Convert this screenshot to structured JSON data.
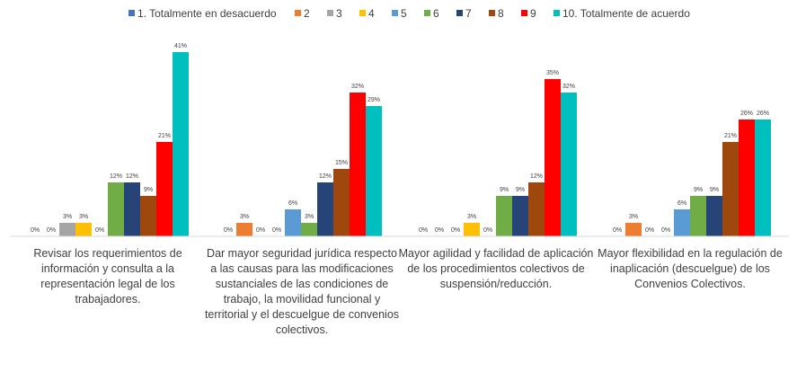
{
  "chart_data": {
    "type": "bar",
    "title": "",
    "xlabel": "",
    "ylabel": "",
    "ylim": [
      0,
      42
    ],
    "grid": false,
    "legend_position": "top",
    "categories": [
      "Revisar los requerimientos de información y consulta a la representación legal de los trabajadores.",
      "Dar mayor seguridad jurídica respecto a las causas para  las modificaciones sustanciales de las condiciones de trabajo, la movilidad funcional y territorial y el descuelgue de convenios colectivos.",
      "Mayor agilidad y facilidad de aplicación de los procedimientos colectivos de suspensión/reducción.",
      "Mayor flexibilidad en la regulación de inaplicación (descuelgue) de los Convenios Colectivos."
    ],
    "series": [
      {
        "name": "1. Totalmente en desacuerdo",
        "color": "#4472C4",
        "values": [
          0,
          0,
          0,
          0
        ],
        "labels": [
          "0%",
          "0%",
          "0%",
          "0%"
        ]
      },
      {
        "name": "2",
        "color": "#ED7D31",
        "values": [
          0,
          3,
          0,
          3
        ],
        "labels": [
          "0%",
          "3%",
          "0%",
          "3%"
        ]
      },
      {
        "name": "3",
        "color": "#A5A5A5",
        "values": [
          3,
          0,
          0,
          0
        ],
        "labels": [
          "3%",
          "0%",
          "0%",
          "0%"
        ]
      },
      {
        "name": "4",
        "color": "#FFC000",
        "values": [
          3,
          0,
          3,
          0
        ],
        "labels": [
          "3%",
          "0%",
          "3%",
          "0%"
        ]
      },
      {
        "name": "5",
        "color": "#5B9BD5",
        "values": [
          0,
          6,
          0,
          6
        ],
        "labels": [
          "0%",
          "6%",
          "0%",
          "6%"
        ]
      },
      {
        "name": "6",
        "color": "#70AD47",
        "values": [
          12,
          3,
          9,
          9
        ],
        "labels": [
          "12%",
          "3%",
          "9%",
          "9%"
        ]
      },
      {
        "name": "7",
        "color": "#264478",
        "values": [
          12,
          12,
          9,
          9
        ],
        "labels": [
          "12%",
          "12%",
          "9%",
          "9%"
        ]
      },
      {
        "name": "8",
        "color": "#9E480E",
        "values": [
          9,
          15,
          12,
          21
        ],
        "labels": [
          "9%",
          "15%",
          "12%",
          "21%"
        ]
      },
      {
        "name": "9",
        "color": "#FF0000",
        "values": [
          21,
          32,
          35,
          26
        ],
        "labels": [
          "21%",
          "32%",
          "35%",
          "26%"
        ]
      },
      {
        "name": "10. Totalmente de acuerdo",
        "color": "#00BFBF",
        "values": [
          41,
          29,
          32,
          26
        ],
        "labels": [
          "41%",
          "29%",
          "32%",
          "26%"
        ]
      }
    ]
  }
}
